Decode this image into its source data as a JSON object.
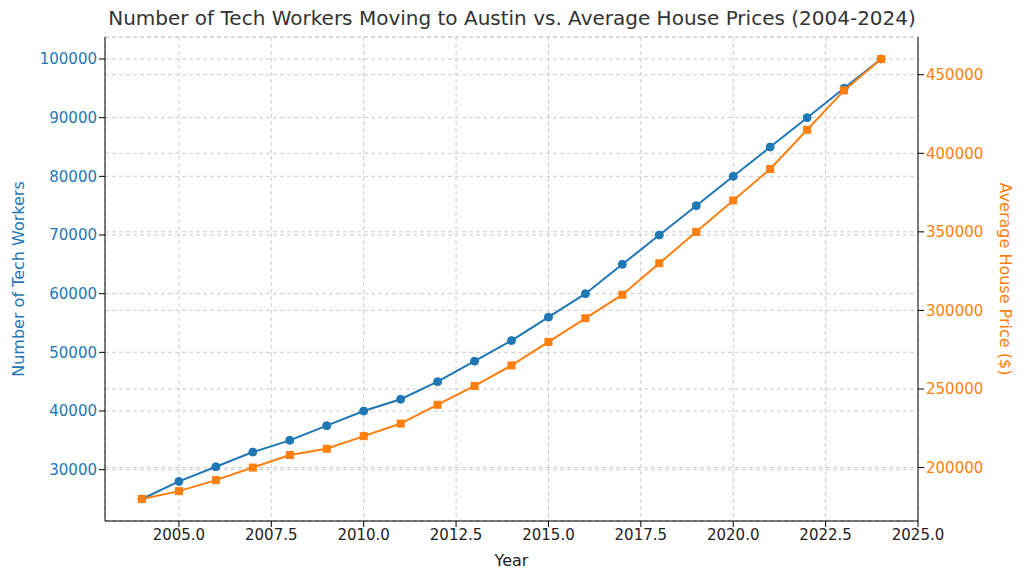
{
  "chart_data": {
    "type": "line",
    "title": "Number of Tech Workers Moving to Austin vs. Average House Prices (2004-2024)",
    "x_label": "Year",
    "y_label": "Number of Tech Workers",
    "y2_label": "Average House Price ($)",
    "x": [
      2004,
      2005,
      2006,
      2007,
      2008,
      2009,
      2010,
      2011,
      2012,
      2013,
      2014,
      2015,
      2016,
      2017,
      2018,
      2019,
      2020,
      2021,
      2022,
      2023,
      2024
    ],
    "series": [
      {
        "name": "Number of Tech Workers",
        "color": "#1f77b4",
        "marker": "circle",
        "line_style": "solid",
        "values": [
          25000,
          28000,
          30500,
          33000,
          35000,
          37500,
          40000,
          42000,
          45000,
          48500,
          52000,
          56000,
          60000,
          65000,
          70000,
          75000,
          80000,
          85000,
          90000,
          95000,
          100000
        ]
      },
      {
        "name": "Average House Price ($)",
        "color": "#ff7f0e",
        "marker": "square",
        "line_style": "solid",
        "axis": "y2",
        "values": [
          180000,
          185000,
          192000,
          200000,
          208000,
          212000,
          220000,
          228000,
          240000,
          252000,
          265000,
          280000,
          295000,
          310000,
          330000,
          350000,
          370000,
          390000,
          415000,
          440000,
          460000
        ]
      }
    ],
    "xlim": [
      2003,
      2025
    ],
    "xticks": [
      {
        "value": 2005,
        "label": "2005.0"
      },
      {
        "value": 2007.5,
        "label": "2007.5"
      },
      {
        "value": 2010,
        "label": "2010.0"
      },
      {
        "value": 2012.5,
        "label": "2012.5"
      },
      {
        "value": 2015,
        "label": "2015.0"
      },
      {
        "value": 2017.5,
        "label": "2017.5"
      },
      {
        "value": 2020,
        "label": "2020.0"
      },
      {
        "value": 2022.5,
        "label": "2022.5"
      },
      {
        "value": 2025,
        "label": "2025.0"
      }
    ],
    "ylim": [
      21250,
      103750
    ],
    "yticks": [
      30000,
      40000,
      50000,
      60000,
      70000,
      80000,
      90000,
      100000
    ],
    "y2lim": [
      166000,
      474000
    ],
    "y2ticks": [
      200000,
      250000,
      300000,
      350000,
      400000,
      450000
    ],
    "grid": true
  }
}
